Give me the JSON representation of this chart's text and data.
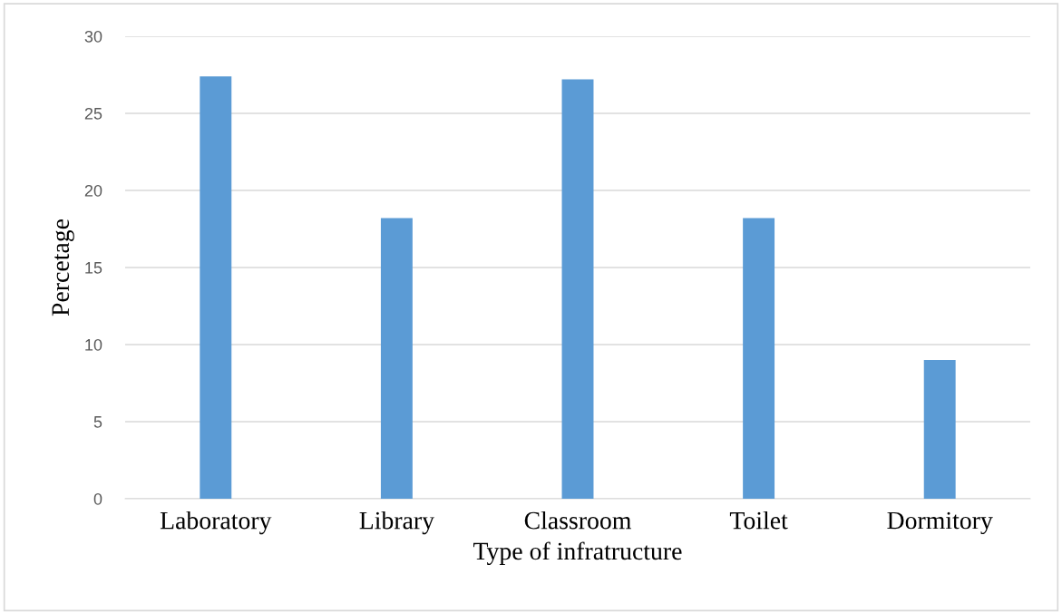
{
  "chart_data": {
    "type": "bar",
    "xlabel": "Type of infratructure",
    "ylabel": "Percetage",
    "categories": [
      "Laboratory",
      "Library",
      "Classroom",
      "Toilet",
      "Dormitory"
    ],
    "values": [
      27.4,
      18.2,
      27.2,
      18.2,
      9.0
    ],
    "color": "#5b9bd5",
    "ylim": [
      0,
      30
    ],
    "yticks": [
      0,
      5,
      10,
      15,
      20,
      25,
      30
    ],
    "grid": "y"
  }
}
